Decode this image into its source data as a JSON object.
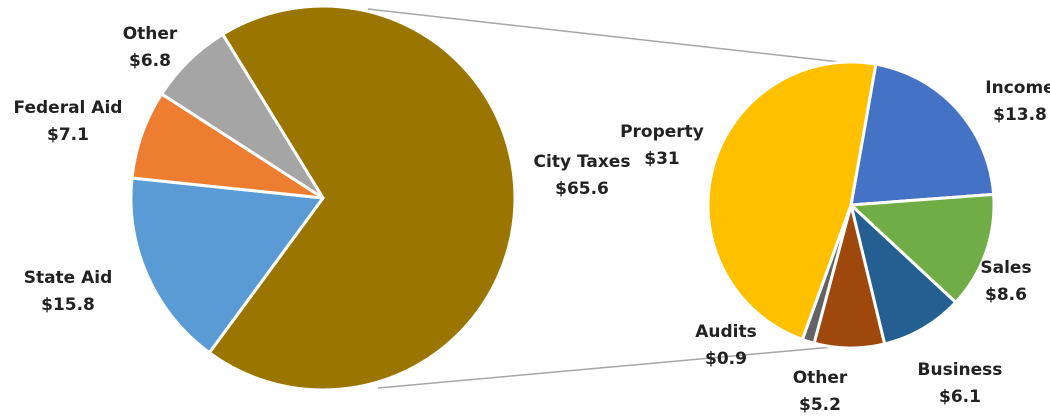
{
  "chart_data": [
    {
      "type": "pie",
      "categories": [
        "City Taxes",
        "State Aid",
        "Federal Aid",
        "Other"
      ],
      "values": [
        65.6,
        15.8,
        7.1,
        6.8
      ],
      "value_labels": [
        "$65.6",
        "$15.8",
        "$7.1",
        "$6.8"
      ],
      "colors": [
        "#9a7600",
        "#5b9bd5",
        "#ed7d31",
        "#a5a5a5"
      ]
    },
    {
      "type": "pie",
      "categories": [
        "Income",
        "Sales",
        "Business",
        "Other",
        "Audits",
        "Property"
      ],
      "values": [
        13.8,
        8.6,
        6.1,
        5.2,
        0.9,
        31
      ],
      "value_labels": [
        "$13.8",
        "$8.6",
        "$6.1",
        "$5.2",
        "$0.9",
        "$31"
      ],
      "colors": [
        "#4472c4",
        "#70ad47",
        "#255e91",
        "#9e480e",
        "#636363",
        "#ffc000"
      ]
    }
  ]
}
